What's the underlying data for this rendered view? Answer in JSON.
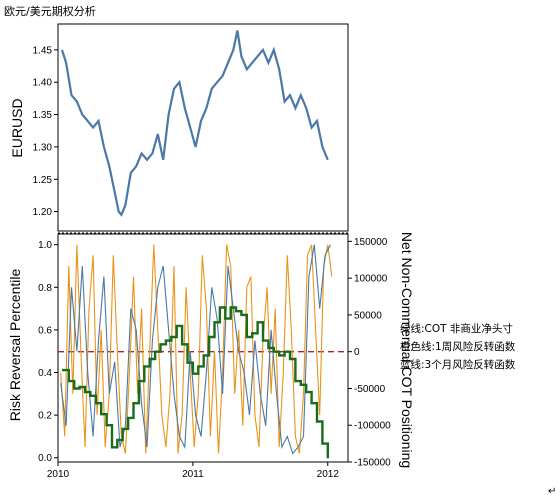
{
  "page_title": "欧元/美元期权分析",
  "chart_data": [
    {
      "id": "eurusd",
      "type": "line",
      "ylabel": "EURUSD",
      "ylim": [
        1.17,
        1.49
      ],
      "yticks": [
        "1.20",
        "1.25",
        "1.30",
        "1.35",
        "1.40",
        "1.45"
      ],
      "yticks_values": [
        1.2,
        1.25,
        1.3,
        1.35,
        1.4,
        1.45
      ],
      "x_range": [
        2010.0,
        2012.15
      ],
      "grid": false,
      "series": [
        {
          "color": "#4a78a8",
          "x": [
            2010.03,
            2010.06,
            2010.1,
            2010.14,
            2010.18,
            2010.22,
            2010.26,
            2010.3,
            2010.34,
            2010.38,
            2010.42,
            2010.45,
            2010.47,
            2010.5,
            2010.54,
            2010.58,
            2010.62,
            2010.66,
            2010.7,
            2010.74,
            2010.78,
            2010.82,
            2010.86,
            2010.9,
            2010.94,
            2010.98,
            2011.02,
            2011.06,
            2011.1,
            2011.14,
            2011.18,
            2011.22,
            2011.26,
            2011.3,
            2011.33,
            2011.36,
            2011.4,
            2011.44,
            2011.48,
            2011.52,
            2011.56,
            2011.6,
            2011.64,
            2011.68,
            2011.72,
            2011.76,
            2011.8,
            2011.84,
            2011.88,
            2011.92,
            2011.96,
            2012.0
          ],
          "values": [
            1.45,
            1.43,
            1.38,
            1.37,
            1.35,
            1.34,
            1.33,
            1.34,
            1.3,
            1.27,
            1.23,
            1.2,
            1.195,
            1.21,
            1.26,
            1.27,
            1.29,
            1.28,
            1.29,
            1.32,
            1.28,
            1.35,
            1.39,
            1.4,
            1.36,
            1.33,
            1.3,
            1.34,
            1.36,
            1.39,
            1.4,
            1.41,
            1.43,
            1.45,
            1.48,
            1.44,
            1.42,
            1.43,
            1.44,
            1.45,
            1.43,
            1.45,
            1.42,
            1.37,
            1.38,
            1.36,
            1.38,
            1.36,
            1.33,
            1.34,
            1.3,
            1.28
          ]
        }
      ]
    },
    {
      "id": "risk_reversal",
      "type": "line",
      "ylabel": "Risk Reversal Percentile",
      "y2label": "Net Non-Commercial COT Positioning",
      "ylim": [
        -0.02,
        1.05
      ],
      "yticks": [
        "0.0",
        "0.2",
        "0.4",
        "0.6",
        "0.8",
        "1.0"
      ],
      "yticks_values": [
        0.0,
        0.2,
        0.4,
        0.6,
        0.8,
        1.0
      ],
      "y2lim": [
        -150000,
        160000
      ],
      "y2ticks": [
        "-150000",
        "-100000",
        "-50000",
        "0",
        "50000",
        "100000",
        "150000"
      ],
      "y2ticks_values": [
        -150000,
        -100000,
        -50000,
        0,
        50000,
        100000,
        150000
      ],
      "x_range": [
        2010.0,
        2012.15
      ],
      "xticks": [
        "2010",
        "2011",
        "2012"
      ],
      "xticks_values": [
        2010,
        2011,
        2012
      ],
      "reference_line": {
        "axis": "y2",
        "value": 0,
        "color": "#b22222",
        "style": "dashed"
      },
      "series": [
        {
          "axis": "y2",
          "color": "#1a6b1a",
          "x": [
            2010.03,
            2010.08,
            2010.12,
            2010.16,
            2010.2,
            2010.24,
            2010.28,
            2010.32,
            2010.36,
            2010.4,
            2010.44,
            2010.48,
            2010.52,
            2010.56,
            2010.6,
            2010.64,
            2010.68,
            2010.72,
            2010.76,
            2010.8,
            2010.84,
            2010.88,
            2010.92,
            2010.96,
            2011.0,
            2011.04,
            2011.08,
            2011.12,
            2011.16,
            2011.2,
            2011.24,
            2011.28,
            2011.32,
            2011.36,
            2011.4,
            2011.44,
            2011.48,
            2011.52,
            2011.56,
            2011.6,
            2011.64,
            2011.68,
            2011.72,
            2011.76,
            2011.8,
            2011.84,
            2011.88,
            2011.92,
            2011.96,
            2012.0
          ],
          "values": [
            -25000,
            -40000,
            -50000,
            -48000,
            -55000,
            -60000,
            -70000,
            -85000,
            -100000,
            -130000,
            -120000,
            -105000,
            -90000,
            -70000,
            -40000,
            -20000,
            -10000,
            0,
            10000,
            15000,
            20000,
            35000,
            10000,
            -15000,
            -30000,
            -20000,
            -5000,
            20000,
            40000,
            60000,
            45000,
            60000,
            55000,
            50000,
            20000,
            25000,
            40000,
            15000,
            5000,
            0,
            -5000,
            0,
            -10000,
            -40000,
            -45000,
            -55000,
            -70000,
            -95000,
            -125000,
            -145000
          ]
        },
        {
          "axis": "y",
          "color": "#e8941a",
          "x": [
            2010.02,
            2010.05,
            2010.08,
            2010.11,
            2010.14,
            2010.17,
            2010.2,
            2010.23,
            2010.26,
            2010.29,
            2010.32,
            2010.35,
            2010.38,
            2010.41,
            2010.44,
            2010.47,
            2010.5,
            2010.53,
            2010.56,
            2010.59,
            2010.62,
            2010.65,
            2010.68,
            2010.71,
            2010.74,
            2010.77,
            2010.8,
            2010.83,
            2010.86,
            2010.89,
            2010.92,
            2010.95,
            2010.98,
            2011.01,
            2011.04,
            2011.07,
            2011.1,
            2011.13,
            2011.16,
            2011.19,
            2011.22,
            2011.25,
            2011.28,
            2011.31,
            2011.34,
            2011.37,
            2011.4,
            2011.43,
            2011.46,
            2011.49,
            2011.52,
            2011.55,
            2011.58,
            2011.61,
            2011.64,
            2011.67,
            2011.7,
            2011.73,
            2011.76,
            2011.79,
            2011.82,
            2011.85,
            2011.88,
            2011.91,
            2011.94,
            2011.97,
            2012.0,
            2012.03
          ],
          "values": [
            0.4,
            0.1,
            0.9,
            0.3,
            1.0,
            0.5,
            0.05,
            0.7,
            0.95,
            0.2,
            0.6,
            0.05,
            0.3,
            0.95,
            0.5,
            0.1,
            0.02,
            0.4,
            0.85,
            0.3,
            0.7,
            0.02,
            0.5,
            1.0,
            0.6,
            0.2,
            0.05,
            0.3,
            0.9,
            0.02,
            0.2,
            0.8,
            0.4,
            0.05,
            0.3,
            0.95,
            0.7,
            0.1,
            0.5,
            0.02,
            0.4,
            1.0,
            0.9,
            0.3,
            0.6,
            0.15,
            0.8,
            0.85,
            0.2,
            0.05,
            0.55,
            0.8,
            0.3,
            0.7,
            0.05,
            0.4,
            0.95,
            0.6,
            0.1,
            0.02,
            0.3,
            0.95,
            1.0,
            0.6,
            0.2,
            0.9,
            1.0,
            0.85
          ]
        },
        {
          "axis": "y",
          "color": "#4a78a8",
          "x": [
            2010.02,
            2010.06,
            2010.1,
            2010.14,
            2010.18,
            2010.22,
            2010.26,
            2010.3,
            2010.34,
            2010.38,
            2010.42,
            2010.46,
            2010.5,
            2010.54,
            2010.58,
            2010.62,
            2010.66,
            2010.7,
            2010.74,
            2010.78,
            2010.82,
            2010.86,
            2010.9,
            2010.94,
            2010.98,
            2011.02,
            2011.06,
            2011.1,
            2011.14,
            2011.18,
            2011.22,
            2011.26,
            2011.3,
            2011.34,
            2011.38,
            2011.42,
            2011.46,
            2011.5,
            2011.54,
            2011.58,
            2011.62,
            2011.66,
            2011.7,
            2011.74,
            2011.78,
            2011.82,
            2011.86,
            2011.9,
            2011.94,
            2011.98,
            2012.02
          ],
          "values": [
            0.35,
            0.15,
            0.8,
            0.5,
            0.9,
            0.4,
            0.1,
            0.55,
            0.85,
            0.3,
            0.45,
            0.05,
            0.15,
            0.7,
            0.6,
            0.25,
            0.05,
            0.55,
            0.8,
            0.9,
            0.6,
            0.3,
            0.1,
            0.05,
            0.5,
            0.2,
            0.1,
            0.4,
            0.8,
            0.65,
            0.3,
            0.9,
            0.7,
            0.5,
            0.4,
            0.2,
            0.55,
            0.3,
            0.15,
            0.6,
            0.3,
            0.05,
            0.1,
            0.02,
            0.05,
            0.1,
            0.85,
            1.0,
            0.7,
            0.95,
            1.0
          ]
        }
      ]
    }
  ],
  "legend": {
    "items": [
      {
        "label": "绿线:COT 非商业净头寸",
        "color": "#1a6b1a"
      },
      {
        "label": "橙色线:1周风险反转函数",
        "color": "#e8941a"
      },
      {
        "label": "蓝线:3个月风险反转函数",
        "color": "#4a78a8"
      }
    ]
  },
  "footer_mark": "↵"
}
